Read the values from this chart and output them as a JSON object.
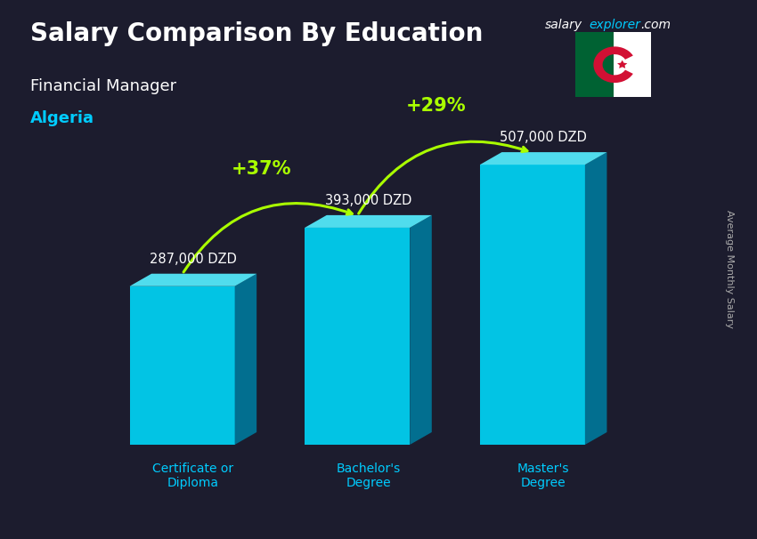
{
  "title_main": "Salary Comparison By Education",
  "title_sub": "Financial Manager",
  "title_country": "Algeria",
  "watermark": "salaryexplorer.com",
  "ylabel_rotated": "Average Monthly Salary",
  "categories": [
    "Certificate or\nDiploma",
    "Bachelor's\nDegree",
    "Master's\nDegree"
  ],
  "values": [
    287000,
    393000,
    507000
  ],
  "value_labels": [
    "287,000 DZD",
    "393,000 DZD",
    "507,000 DZD"
  ],
  "pct_labels": [
    "+37%",
    "+29%"
  ],
  "bar_color_top": "#00d4f5",
  "bar_color_bottom": "#0099bb",
  "bar_color_side": "#006688",
  "background_color": "#1a1a2e",
  "title_color": "#ffffff",
  "subtitle_color": "#ffffff",
  "country_color": "#00ccff",
  "value_label_color": "#ffffff",
  "pct_color": "#aaff00",
  "xtick_color": "#00ccff",
  "arrow_color": "#aaff00",
  "fig_width": 8.5,
  "fig_height": 6.06
}
